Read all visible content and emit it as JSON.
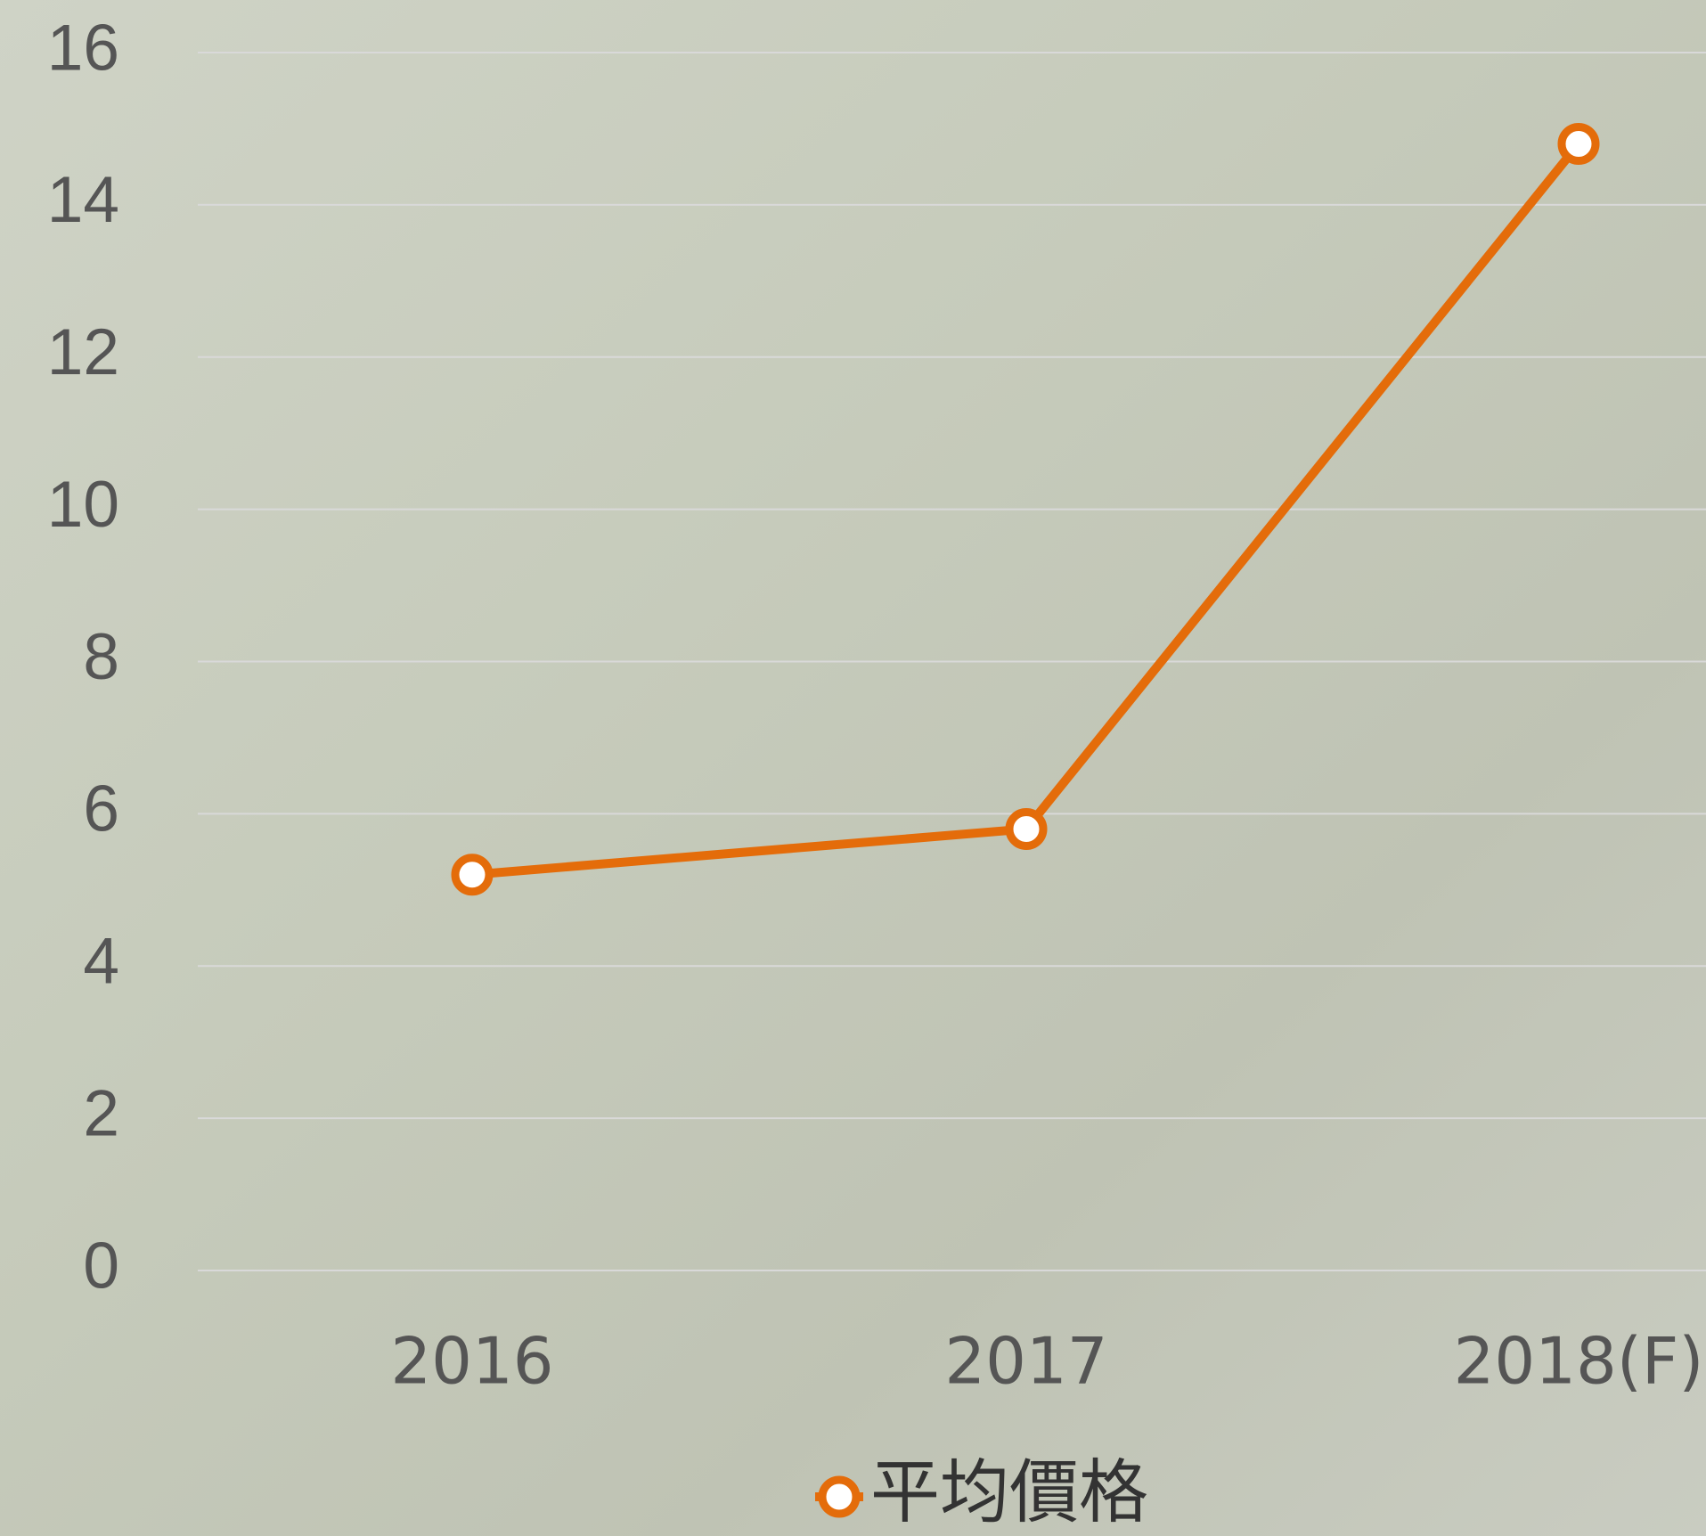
{
  "chart_data": {
    "type": "line",
    "categories": [
      "2016",
      "2017",
      "2018(F)"
    ],
    "series": [
      {
        "name": "平均價格",
        "color": "#e46c0a",
        "values": [
          5.2,
          5.8,
          14.8
        ]
      }
    ],
    "ylim": [
      0,
      16
    ],
    "yticks": [
      0,
      2,
      4,
      6,
      8,
      10,
      12,
      14,
      16
    ],
    "grid": true
  }
}
